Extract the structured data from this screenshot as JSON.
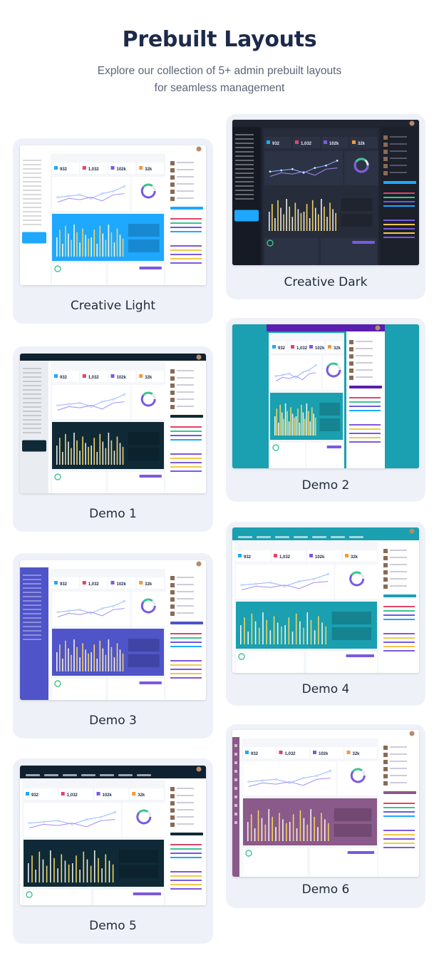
{
  "header": {
    "title": "Prebuilt Layouts",
    "subtitle_line1": "Explore our collection of 5+ admin prebuilt layouts",
    "subtitle_line2": "for seamless management"
  },
  "theme": {
    "accent": "#1d2a4a",
    "card_bg": "#eef2f8",
    "label_color": "#232c3d"
  },
  "layouts": [
    {
      "key": "creative-light",
      "label": "Creative Light",
      "colors": {
        "page": "#ffffff",
        "sidebar": "#ffffff",
        "nav": "#ffffff",
        "content": "#f4f6fa",
        "panel": "#1ea8ff",
        "widget": "#ffffff",
        "text": "#1d2a4a",
        "accent": "#1ea8ff"
      },
      "sidebar_style": "full",
      "nav_type": "top",
      "stats": [
        "932",
        "1,032",
        "102k",
        "32k"
      ]
    },
    {
      "key": "creative-dark",
      "label": "Creative Dark",
      "colors": {
        "page": "#1f2430",
        "sidebar": "#161a24",
        "nav": "#1f2430",
        "content": "#262c3a",
        "panel": "#262c3a",
        "widget": "#2c3344",
        "text": "#e6e9f0",
        "accent": "#1ea8ff"
      },
      "sidebar_style": "full",
      "nav_type": "top",
      "stats": [
        "932",
        "1,032",
        "102k",
        "32k"
      ]
    },
    {
      "key": "demo-1",
      "label": "Demo 1",
      "colors": {
        "page": "#ffffff",
        "sidebar": "#e9edf2",
        "nav": "#0f2030",
        "content": "#f4f6fa",
        "panel": "#0f2a36",
        "widget": "#ffffff",
        "text": "#1d2a4a",
        "accent": "#0f2a36"
      },
      "sidebar_style": "full",
      "nav_type": "top",
      "stats": [
        "932",
        "1,032",
        "102k",
        "32k"
      ]
    },
    {
      "key": "demo-2",
      "label": "Demo 2",
      "colors": {
        "page": "#1aa0b0",
        "sidebar": "#1aa0b0",
        "nav": "#5a1fb0",
        "content": "#f4f6fa",
        "panel": "#1aa0b0",
        "widget": "#ffffff",
        "text": "#1d2a4a",
        "accent": "#5a1fb0"
      },
      "sidebar_style": "none",
      "nav_type": "top",
      "stats": [
        "932",
        "1,032",
        "102k",
        "32k"
      ]
    },
    {
      "key": "demo-3",
      "label": "Demo 3",
      "colors": {
        "page": "#ffffff",
        "sidebar": "#4f54c8",
        "nav": "#ffffff",
        "content": "#f4f6fa",
        "panel": "#4f54c8",
        "widget": "#ffffff",
        "text": "#1d2a4a",
        "accent": "#4f54c8"
      },
      "sidebar_style": "full",
      "nav_type": "top",
      "stats": [
        "932",
        "1,032",
        "102k",
        "32k"
      ]
    },
    {
      "key": "demo-4",
      "label": "Demo 4",
      "colors": {
        "page": "#ffffff",
        "sidebar": "#ffffff",
        "nav": "#1aa0b0",
        "content": "#f4f6fa",
        "panel": "#1aa0b0",
        "widget": "#ffffff",
        "text": "#1d2a4a",
        "accent": "#1aa0b0"
      },
      "sidebar_style": "none",
      "nav_type": "horizontal",
      "stats": [
        "932",
        "1,032",
        "102k",
        "32k"
      ]
    },
    {
      "key": "demo-5",
      "label": "Demo 5",
      "colors": {
        "page": "#ffffff",
        "sidebar": "#ffffff",
        "nav": "#0f2030",
        "content": "#f4f6fa",
        "panel": "#0f2a36",
        "widget": "#ffffff",
        "text": "#1d2a4a",
        "accent": "#0f2a36"
      },
      "sidebar_style": "none",
      "nav_type": "horizontal",
      "stats": [
        "932",
        "1,032",
        "102k",
        "32k"
      ]
    },
    {
      "key": "demo-6",
      "label": "Demo 6",
      "colors": {
        "page": "#ffffff",
        "sidebar": "#8a5a8a",
        "nav": "#ffffff",
        "content": "#f4f6fa",
        "panel": "#8a5a8a",
        "widget": "#ffffff",
        "text": "#1d2a4a",
        "accent": "#8a5a8a"
      },
      "sidebar_style": "icons",
      "nav_type": "top",
      "stats": [
        "932",
        "1,032",
        "102k",
        "32k"
      ]
    }
  ]
}
